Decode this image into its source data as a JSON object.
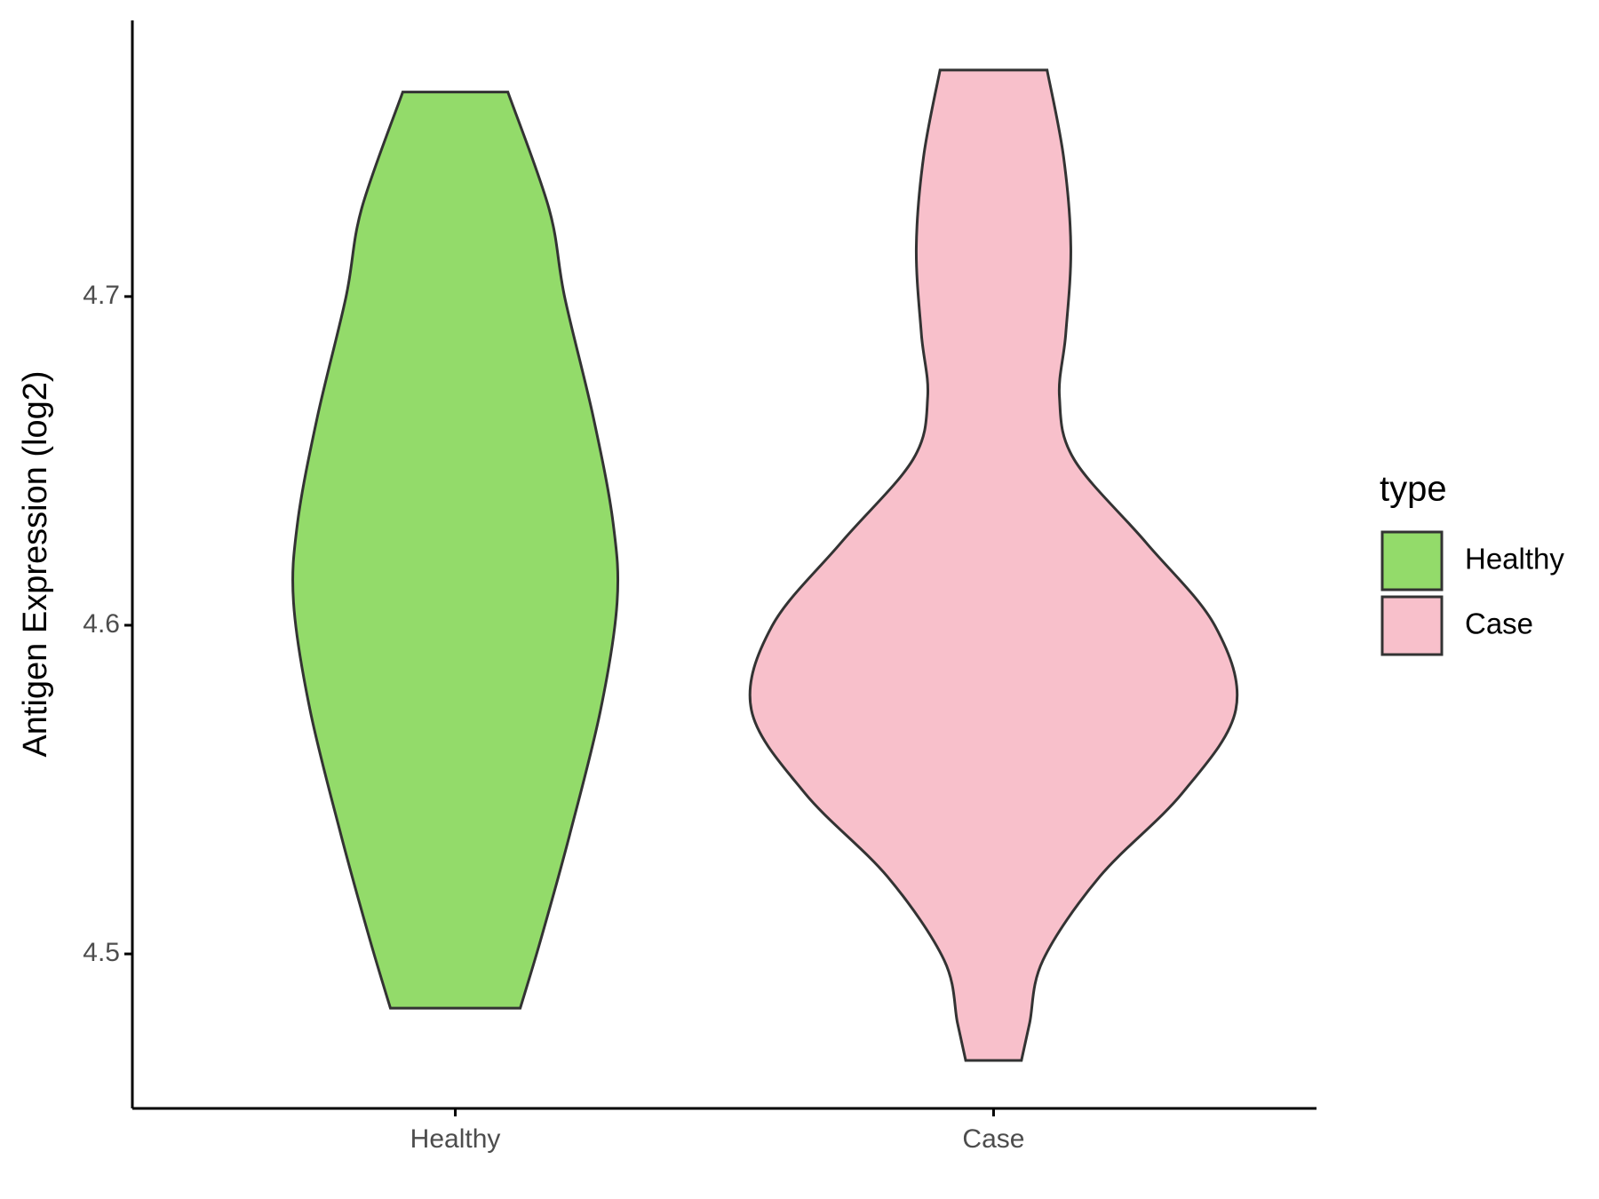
{
  "chart_data": {
    "type": "violin",
    "y_label": "Antigen Expression (log2)",
    "ylim": [
      4.453,
      4.784
    ],
    "yticks": [
      4.5,
      4.6,
      4.7
    ],
    "categories": [
      "Healthy",
      "Case"
    ],
    "legend_title": "type",
    "series": [
      {
        "name": "Healthy",
        "color": "#93DB6A",
        "y": [
          4.7622,
          4.7267,
          4.7,
          4.6632,
          4.6314,
          4.607,
          4.5743,
          4.5362,
          4.5044,
          4.4835
        ],
        "widths": [
          0.217,
          0.387,
          0.451,
          0.57,
          0.651,
          0.668,
          0.6,
          0.472,
          0.353,
          0.268
        ]
      },
      {
        "name": "Case",
        "color": "#F8C0CB",
        "y": [
          4.7689,
          4.7425,
          4.7149,
          4.6886,
          4.6695,
          4.6505,
          4.6251,
          4.5997,
          4.5743,
          4.5489,
          4.5235,
          4.4981,
          4.479,
          4.4676
        ],
        "widths": [
          0.221,
          0.289,
          0.319,
          0.298,
          0.272,
          0.332,
          0.63,
          0.915,
          1.0,
          0.779,
          0.438,
          0.204,
          0.149,
          0.115
        ]
      }
    ]
  }
}
